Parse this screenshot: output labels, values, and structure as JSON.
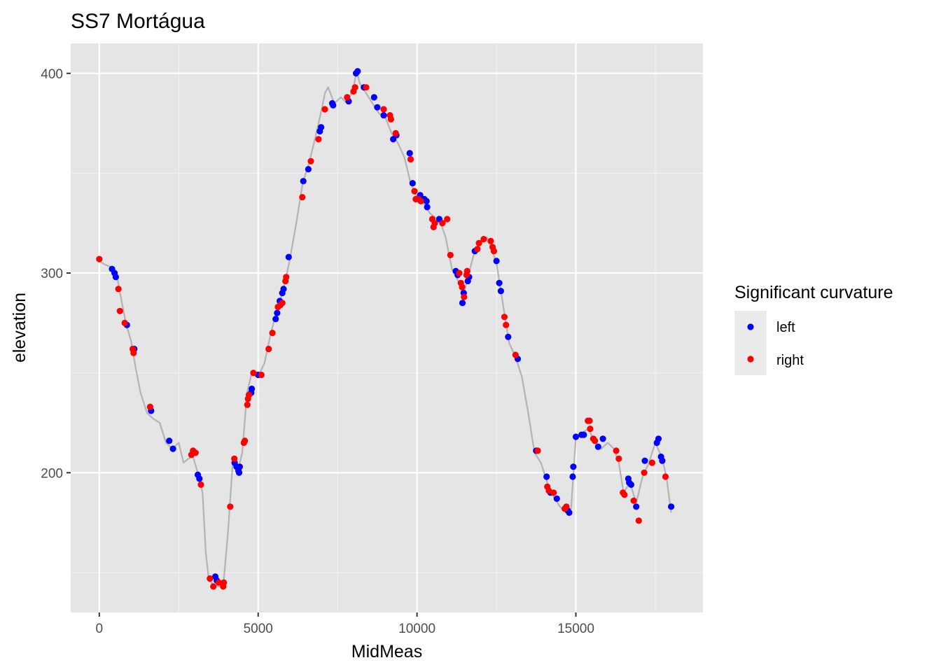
{
  "chart_data": {
    "type": "scatter",
    "title": "SS7 Mortágua",
    "xlabel": "MidMeas",
    "ylabel": "elevation",
    "xlim": [
      -900,
      19000
    ],
    "ylim": [
      130,
      415
    ],
    "x_ticks": [
      0,
      5000,
      10000,
      15000
    ],
    "x_tick_labels": [
      "0",
      "5000",
      "10000",
      "15000"
    ],
    "y_ticks": [
      200,
      300,
      400
    ],
    "y_tick_labels": [
      "200",
      "300",
      "400"
    ],
    "grid": true,
    "background": "#e5e5e5",
    "legend": {
      "title": "Significant curvature",
      "position": "right",
      "entries": [
        {
          "label": "left",
          "color": "#0000ff"
        },
        {
          "label": "right",
          "color": "#ff0000"
        }
      ]
    },
    "profile_line": {
      "color": "#b3b3b3",
      "x": [
        0,
        200,
        400,
        550,
        700,
        850,
        1000,
        1150,
        1300,
        1500,
        1700,
        1900,
        2100,
        2300,
        2500,
        2650,
        2800,
        2950,
        3100,
        3250,
        3350,
        3450,
        3600,
        3750,
        3900,
        4050,
        4200,
        4350,
        4500,
        4650,
        4800,
        5000,
        5200,
        5400,
        5600,
        5800,
        6000,
        6200,
        6400,
        6600,
        6800,
        7000,
        7100,
        7200,
        7400,
        7600,
        7800,
        8000,
        8100,
        8200,
        8400,
        8600,
        8800,
        9000,
        9200,
        9400,
        9600,
        9800,
        10000,
        10200,
        10400,
        10550,
        10700,
        10900,
        11100,
        11300,
        11450,
        11600,
        11800,
        12000,
        12200,
        12350,
        12500,
        12700,
        12900,
        13100,
        13300,
        13500,
        13700,
        13900,
        14100,
        14300,
        14500,
        14700,
        14850,
        15000,
        15200,
        15400,
        15600,
        15800,
        16000,
        16200,
        16350,
        16500,
        16700,
        16900,
        17100,
        17300,
        17500,
        17700,
        17850,
        18000
      ],
      "y": [
        306,
        304,
        303,
        299,
        286,
        274,
        266,
        252,
        240,
        230,
        227,
        225,
        215,
        212,
        215,
        205,
        207,
        208,
        200,
        190,
        160,
        146,
        144,
        143,
        143,
        170,
        205,
        200,
        210,
        240,
        250,
        248,
        255,
        270,
        282,
        292,
        307,
        325,
        345,
        355,
        368,
        382,
        390,
        393,
        385,
        388,
        385,
        393,
        401,
        395,
        390,
        385,
        380,
        378,
        370,
        365,
        358,
        345,
        338,
        335,
        330,
        328,
        327,
        318,
        302,
        296,
        288,
        298,
        310,
        315,
        318,
        312,
        305,
        285,
        265,
        258,
        248,
        230,
        210,
        205,
        195,
        188,
        183,
        180,
        182,
        218,
        220,
        222,
        215,
        212,
        215,
        212,
        205,
        190,
        195,
        185,
        198,
        205,
        215,
        208,
        198,
        180
      ]
    },
    "series": [
      {
        "name": "left",
        "color": "#0000ff",
        "points": [
          [
            400,
            302
          ],
          [
            480,
            300
          ],
          [
            520,
            298
          ],
          [
            870,
            274
          ],
          [
            1100,
            262
          ],
          [
            1630,
            231
          ],
          [
            2200,
            216
          ],
          [
            2320,
            212
          ],
          [
            3100,
            199
          ],
          [
            3150,
            197
          ],
          [
            3650,
            148
          ],
          [
            3700,
            146
          ],
          [
            4260,
            205
          ],
          [
            4320,
            203
          ],
          [
            4380,
            201
          ],
          [
            4400,
            200
          ],
          [
            4420,
            203
          ],
          [
            4780,
            240
          ],
          [
            4800,
            242
          ],
          [
            5000,
            249
          ],
          [
            5550,
            277
          ],
          [
            5600,
            280
          ],
          [
            5680,
            286
          ],
          [
            5760,
            290
          ],
          [
            5800,
            292
          ],
          [
            5960,
            308
          ],
          [
            6420,
            346
          ],
          [
            6580,
            352
          ],
          [
            6940,
            371
          ],
          [
            6980,
            373
          ],
          [
            7330,
            385
          ],
          [
            7360,
            384
          ],
          [
            7850,
            386
          ],
          [
            8080,
            400
          ],
          [
            8130,
            401
          ],
          [
            8330,
            393
          ],
          [
            8650,
            388
          ],
          [
            8750,
            383
          ],
          [
            8950,
            379
          ],
          [
            9250,
            367
          ],
          [
            9350,
            369
          ],
          [
            9770,
            360
          ],
          [
            9860,
            345
          ],
          [
            10100,
            339
          ],
          [
            10230,
            337
          ],
          [
            10300,
            336
          ],
          [
            10320,
            333
          ],
          [
            10700,
            327
          ],
          [
            11220,
            301
          ],
          [
            11280,
            299
          ],
          [
            11430,
            285
          ],
          [
            11470,
            290
          ],
          [
            11600,
            296
          ],
          [
            11640,
            298
          ],
          [
            11820,
            311
          ],
          [
            12500,
            306
          ],
          [
            12590,
            295
          ],
          [
            12640,
            291
          ],
          [
            12870,
            268
          ],
          [
            13170,
            257
          ],
          [
            13750,
            211
          ],
          [
            14080,
            198
          ],
          [
            14200,
            190
          ],
          [
            14400,
            187
          ],
          [
            14750,
            181
          ],
          [
            14790,
            180
          ],
          [
            14900,
            198
          ],
          [
            14920,
            203
          ],
          [
            15000,
            218
          ],
          [
            15180,
            219
          ],
          [
            15250,
            219
          ],
          [
            15700,
            213
          ],
          [
            15850,
            217
          ],
          [
            16650,
            197
          ],
          [
            16680,
            195
          ],
          [
            16740,
            194
          ],
          [
            16900,
            183
          ],
          [
            17170,
            206
          ],
          [
            17550,
            215
          ],
          [
            17600,
            217
          ],
          [
            17680,
            208
          ],
          [
            17720,
            206
          ],
          [
            18000,
            183
          ]
        ]
      },
      {
        "name": "right",
        "color": "#ff0000",
        "points": [
          [
            0,
            307
          ],
          [
            600,
            292
          ],
          [
            650,
            281
          ],
          [
            800,
            275
          ],
          [
            1050,
            262
          ],
          [
            1080,
            260
          ],
          [
            1600,
            233
          ],
          [
            2900,
            209
          ],
          [
            2950,
            211
          ],
          [
            3030,
            210
          ],
          [
            3200,
            194
          ],
          [
            3480,
            147
          ],
          [
            3590,
            143
          ],
          [
            3760,
            145
          ],
          [
            3900,
            143
          ],
          [
            3920,
            145
          ],
          [
            4120,
            183
          ],
          [
            4250,
            207
          ],
          [
            4550,
            215
          ],
          [
            4580,
            216
          ],
          [
            4660,
            234
          ],
          [
            4680,
            237
          ],
          [
            4710,
            239
          ],
          [
            4850,
            250
          ],
          [
            5100,
            249
          ],
          [
            5330,
            262
          ],
          [
            5450,
            270
          ],
          [
            5620,
            283
          ],
          [
            5700,
            284
          ],
          [
            5760,
            285
          ],
          [
            5860,
            296
          ],
          [
            5880,
            298
          ],
          [
            6390,
            338
          ],
          [
            6660,
            356
          ],
          [
            6900,
            367
          ],
          [
            7100,
            382
          ],
          [
            7800,
            388
          ],
          [
            8000,
            391
          ],
          [
            8050,
            393
          ],
          [
            8400,
            393
          ],
          [
            8950,
            382
          ],
          [
            9150,
            379
          ],
          [
            9180,
            377
          ],
          [
            9330,
            370
          ],
          [
            9800,
            357
          ],
          [
            9920,
            341
          ],
          [
            9960,
            337
          ],
          [
            10050,
            337
          ],
          [
            10120,
            336
          ],
          [
            10480,
            327
          ],
          [
            10520,
            323
          ],
          [
            10560,
            325
          ],
          [
            10800,
            325
          ],
          [
            10950,
            327
          ],
          [
            11050,
            309
          ],
          [
            11330,
            300
          ],
          [
            11380,
            295
          ],
          [
            11420,
            293
          ],
          [
            11480,
            288
          ],
          [
            11560,
            299
          ],
          [
            11580,
            301
          ],
          [
            11900,
            312
          ],
          [
            11950,
            315
          ],
          [
            12100,
            317
          ],
          [
            12320,
            316
          ],
          [
            12380,
            313
          ],
          [
            12420,
            311
          ],
          [
            12750,
            278
          ],
          [
            12800,
            274
          ],
          [
            13100,
            259
          ],
          [
            13800,
            211
          ],
          [
            14100,
            193
          ],
          [
            14150,
            191
          ],
          [
            14300,
            190
          ],
          [
            14650,
            182
          ],
          [
            14700,
            183
          ],
          [
            15380,
            226
          ],
          [
            15430,
            226
          ],
          [
            15450,
            222
          ],
          [
            15550,
            217
          ],
          [
            15600,
            216
          ],
          [
            16270,
            211
          ],
          [
            16350,
            207
          ],
          [
            16480,
            190
          ],
          [
            16530,
            189
          ],
          [
            16820,
            186
          ],
          [
            16980,
            176
          ],
          [
            17150,
            200
          ],
          [
            17400,
            205
          ],
          [
            17820,
            198
          ]
        ]
      }
    ]
  }
}
